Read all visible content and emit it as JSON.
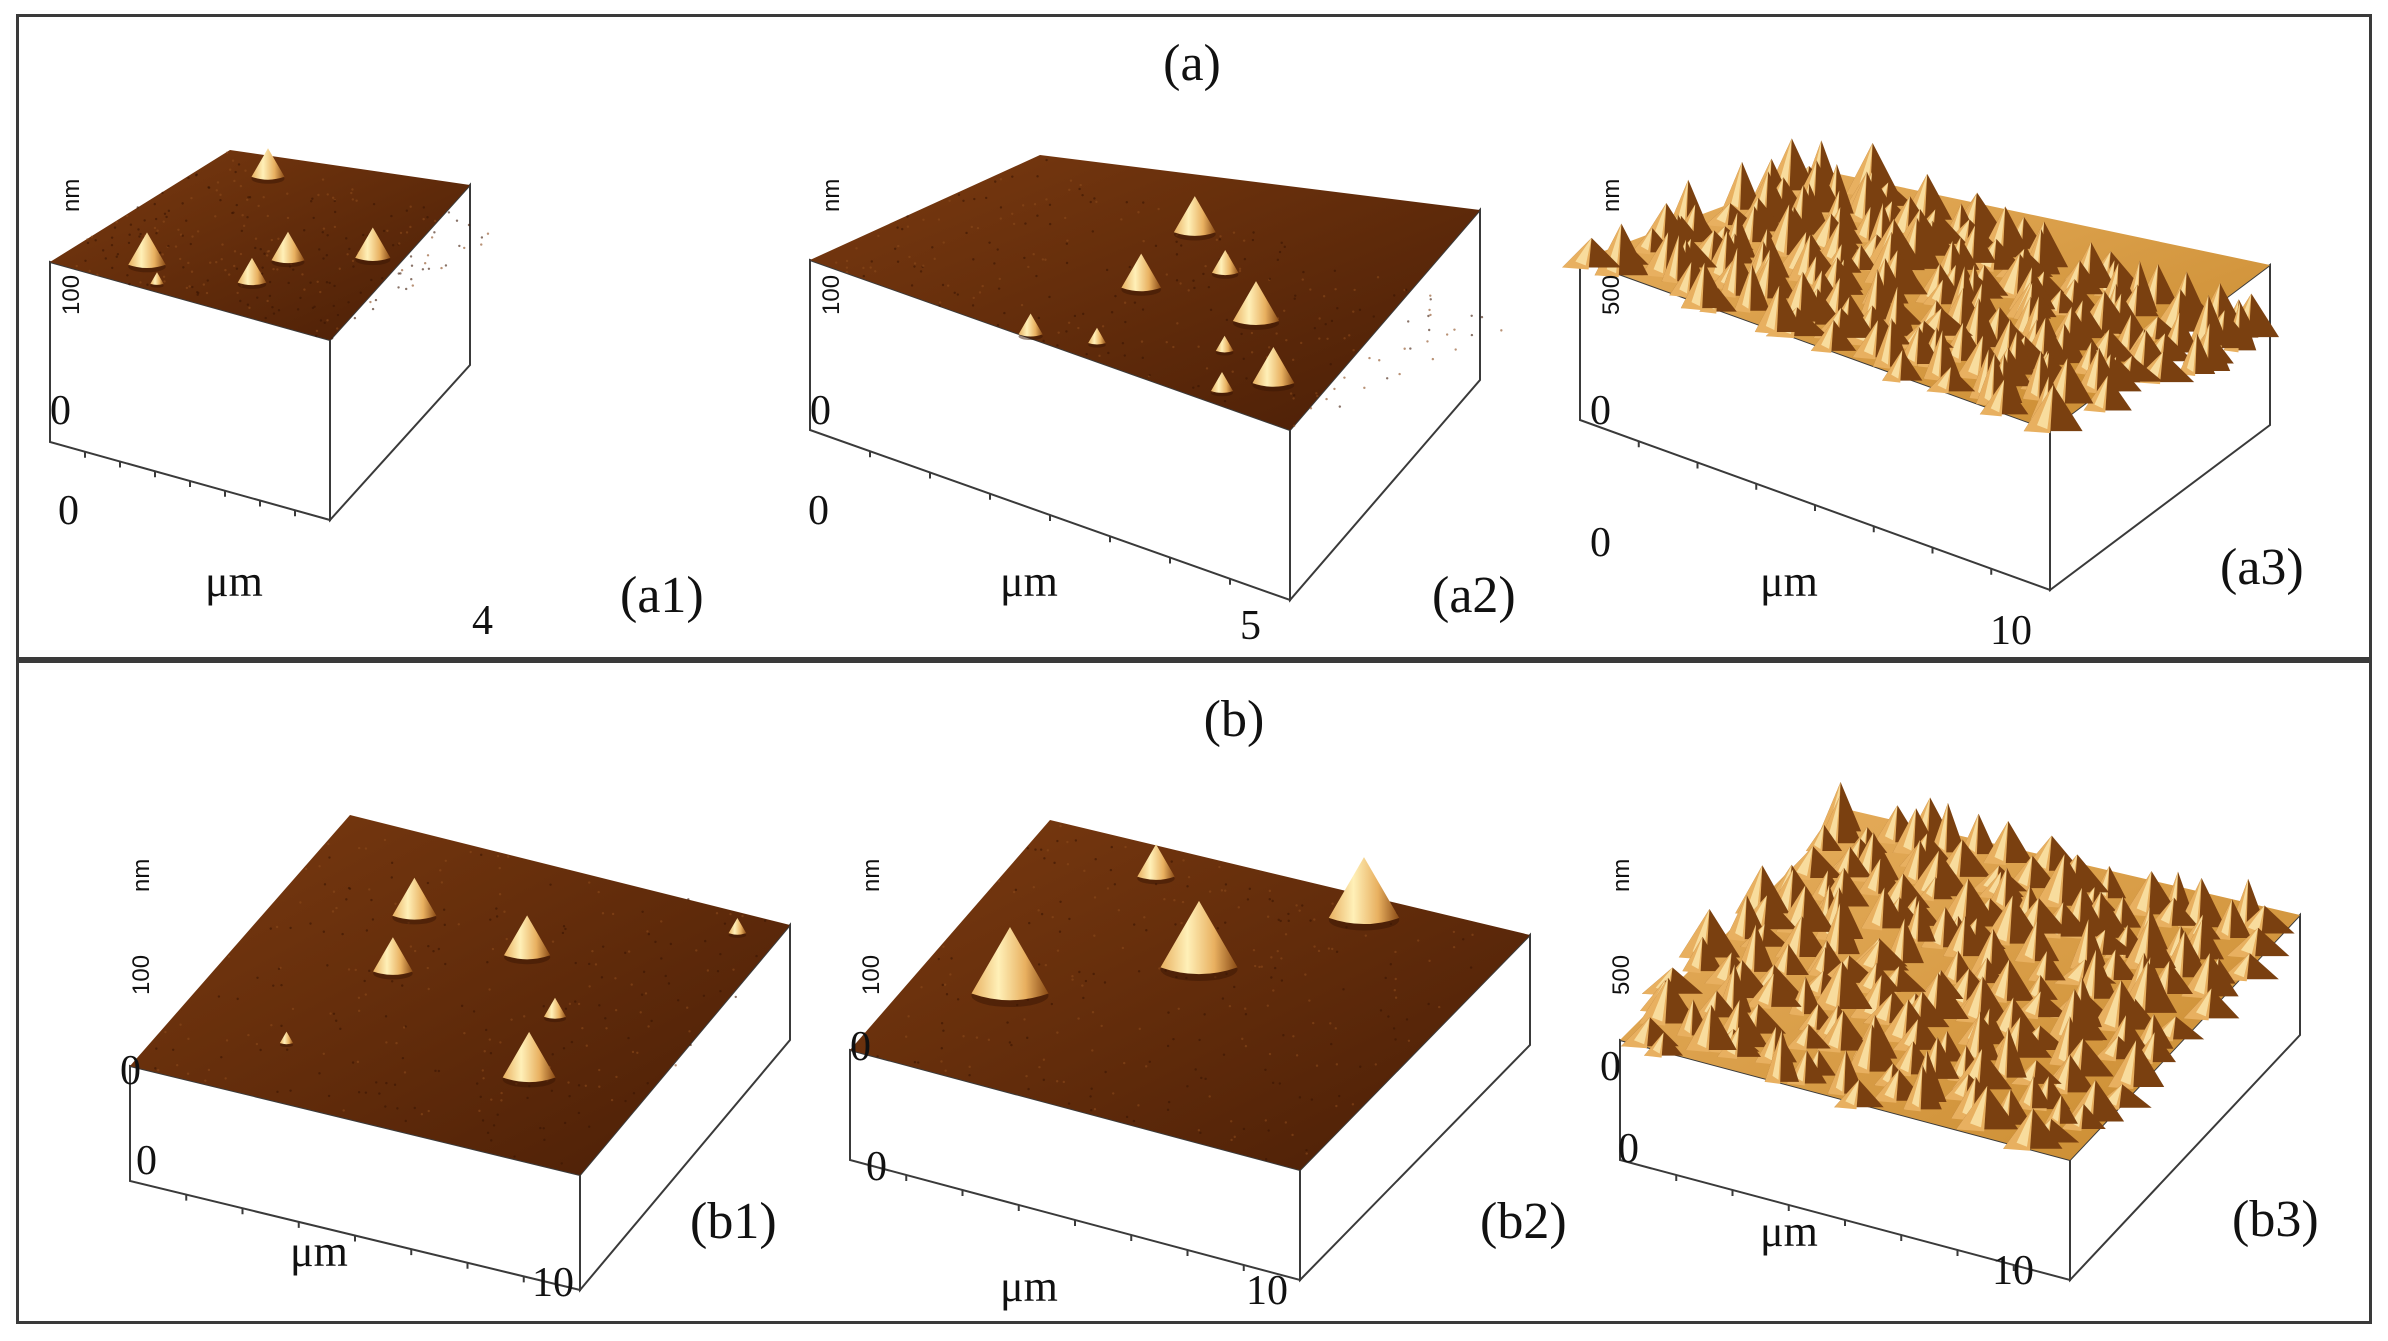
{
  "sections": [
    {
      "label": "(a)",
      "panels": [
        {
          "tag": "(a1)",
          "x_start": "0",
          "x_end": "4",
          "unit": "μm",
          "z_max": "100",
          "z_unit": "nm",
          "z_zero": "0"
        },
        {
          "tag": "(a2)",
          "x_start": "0",
          "x_end": "5",
          "unit": "μm",
          "z_max": "100",
          "z_unit": "nm",
          "z_zero": "0"
        },
        {
          "tag": "(a3)",
          "x_start": "0",
          "x_end": "10",
          "unit": "μm",
          "z_max": "500",
          "z_unit": "nm",
          "z_zero": "0"
        }
      ]
    },
    {
      "label": "(b)",
      "panels": [
        {
          "tag": "(b1)",
          "x_start": "0",
          "x_end": "10",
          "unit": "μm",
          "z_max": "100",
          "z_unit": "nm",
          "z_zero": "0"
        },
        {
          "tag": "(b2)",
          "x_start": "0",
          "x_end": "10",
          "unit": "μm",
          "z_max": "100",
          "z_unit": "nm",
          "z_zero": "0"
        },
        {
          "tag": "(b3)",
          "x_start": "0",
          "x_end": "10",
          "unit": "μm",
          "z_max": "500",
          "z_unit": "nm",
          "z_zero": "0"
        }
      ]
    }
  ],
  "colors": {
    "surface_dark": "#4a1e06",
    "surface_mid": "#7a3a10",
    "peak_light": "#e8b060",
    "peak_highlight": "#fff0b8",
    "rough_mid": "#c98a2e",
    "frame_line": "#3a3a3a"
  }
}
